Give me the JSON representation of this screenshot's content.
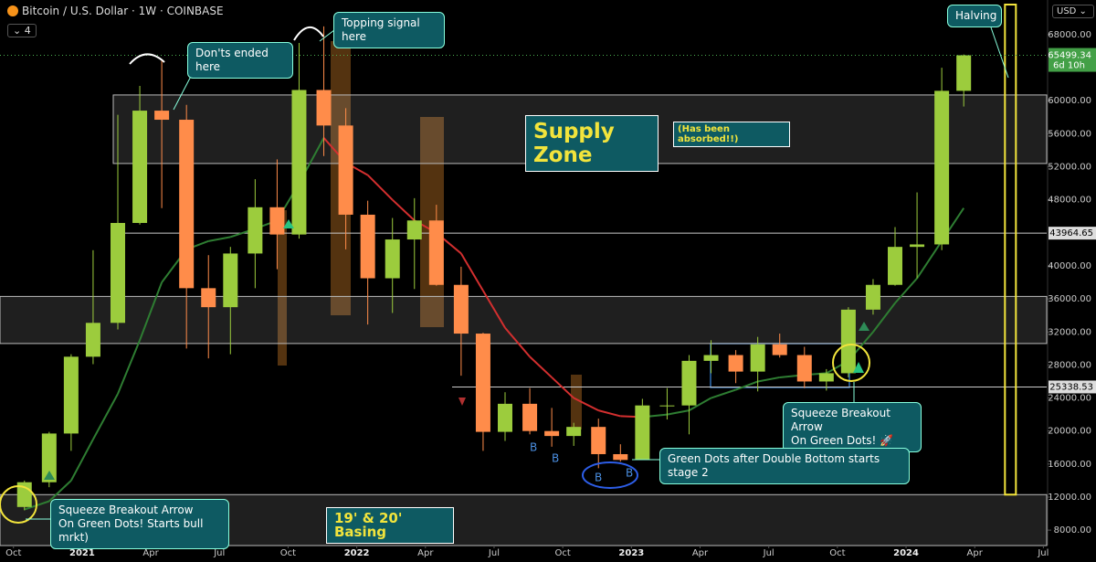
{
  "header": {
    "symbol": "Bitcoin / U.S. Dollar · 1W · COINBASE",
    "indicators": 4,
    "currency": "USD"
  },
  "chart_data": {
    "type": "candlestick",
    "x": [
      2020.79,
      2020.88,
      2020.96,
      2021.04,
      2021.13,
      2021.21,
      2021.29,
      2021.38,
      2021.46,
      2021.54,
      2021.63,
      2021.71,
      2021.79,
      2021.88,
      2021.96,
      2022.04,
      2022.13,
      2022.21,
      2022.29,
      2022.38,
      2022.46,
      2022.54,
      2022.63,
      2022.71,
      2022.79,
      2022.88,
      2022.96,
      2023.04,
      2023.13,
      2023.21,
      2023.29,
      2023.38,
      2023.46,
      2023.54,
      2023.63,
      2023.71,
      2023.79,
      2023.88,
      2023.96,
      2024.04,
      2024.13,
      2024.21
    ],
    "open": [
      10800,
      13800,
      19700,
      29000,
      33100,
      45200,
      58800,
      57700,
      37300,
      35000,
      41500,
      47100,
      43800,
      61300,
      57000,
      46200,
      38500,
      43200,
      45500,
      37700,
      31800,
      19900,
      23300,
      20000,
      19400,
      20500,
      17200,
      16500,
      23100,
      23100,
      28500,
      29200,
      27200,
      30500,
      29200,
      26000,
      27000,
      34700,
      37700,
      42300,
      42600,
      61200
    ],
    "high": [
      14000,
      19900,
      29300,
      41900,
      58300,
      61800,
      64900,
      59500,
      41300,
      42300,
      50500,
      52900,
      67000,
      69000,
      59100,
      47900,
      45800,
      48200,
      47400,
      39900,
      31900,
      24700,
      25200,
      22800,
      21000,
      21500,
      18400,
      23900,
      25200,
      29200,
      31000,
      29800,
      31400,
      31800,
      30200,
      27500,
      35000,
      38400,
      44700,
      48900,
      64000,
      65600
    ],
    "low": [
      10400,
      13200,
      17600,
      28100,
      32300,
      45000,
      47000,
      30000,
      28800,
      29300,
      37300,
      39600,
      43300,
      53300,
      42000,
      32900,
      34300,
      37200,
      37600,
      26700,
      17600,
      18800,
      19600,
      18100,
      18200,
      15500,
      16300,
      16500,
      21400,
      19600,
      27000,
      25800,
      24800,
      28900,
      25200,
      24900,
      26500,
      34100,
      37600,
      38500,
      41900,
      59300
    ],
    "close": [
      13800,
      19700,
      29000,
      33100,
      45200,
      58800,
      57700,
      37300,
      35000,
      41500,
      47100,
      43800,
      61300,
      57000,
      46200,
      38500,
      43200,
      45500,
      37700,
      31800,
      19900,
      23300,
      20000,
      19400,
      20500,
      17200,
      16500,
      23100,
      23100,
      28500,
      29200,
      27200,
      30500,
      29200,
      26000,
      27000,
      34700,
      37700,
      42300,
      42600,
      61200,
      65500
    ],
    "up_color": "#9ccc3d",
    "down_color": "#ff8c4a",
    "ma": {
      "values": [
        10500,
        11500,
        14000,
        19000,
        24500,
        31000,
        38000,
        42000,
        43000,
        43500,
        44500,
        45500,
        50000,
        55500,
        52500,
        51000,
        48000,
        45500,
        44000,
        41500,
        37000,
        32500,
        29000,
        26500,
        24000,
        22500,
        21800,
        21700,
        22000,
        22500,
        24000,
        25000,
        26000,
        26500,
        26800,
        27000,
        28500,
        32000,
        35500,
        38500,
        43000,
        47000
      ],
      "rising_color": "#2e7d32",
      "falling_color": "#d32f2f"
    },
    "levels": [
      60700,
      52400,
      36300,
      30600,
      12300
    ],
    "marked_levels": [
      43964.65,
      25338.53
    ],
    "last_price": 65499.34,
    "countdown": "6d 10h",
    "halving_x": 2024.38,
    "xlim": [
      2020.701,
      2024.512
    ],
    "ylim": [
      5800,
      72200
    ],
    "xticks": [
      {
        "value": 2020.75,
        "label": "Oct"
      },
      2021,
      {
        "value": 2021.25,
        "label": "Apr"
      },
      {
        "value": 2021.5,
        "label": "Jul"
      },
      {
        "value": 2021.75,
        "label": "Oct"
      },
      2022,
      {
        "value": 2022.25,
        "label": "Apr"
      },
      {
        "value": 2022.5,
        "label": "Jul"
      },
      {
        "value": 2022.75,
        "label": "Oct"
      },
      2023,
      {
        "value": 2023.25,
        "label": "Apr"
      },
      {
        "value": 2023.5,
        "label": "Jul"
      },
      {
        "value": 2023.75,
        "label": "Oct"
      },
      2024,
      {
        "value": 2024.25,
        "label": "Apr"
      },
      {
        "value": 2024.5,
        "label": "Jul"
      }
    ],
    "yticks": [
      {
        "value": 8000,
        "label": "8000.00"
      },
      {
        "value": 12000,
        "label": "12000.00"
      },
      {
        "value": 16000,
        "label": "16000.00"
      },
      {
        "value": 20000,
        "label": "20000.00"
      },
      {
        "value": 24000,
        "label": "24000.00"
      },
      {
        "value": 28000,
        "label": "28000.00"
      },
      {
        "value": 32000,
        "label": "32000.00"
      },
      {
        "value": 36000,
        "label": "36000.00"
      },
      {
        "value": 40000,
        "label": "40000.00"
      },
      {
        "value": 48000,
        "label": "48000.00"
      },
      {
        "value": 52000,
        "label": "52000.00"
      },
      {
        "value": 56000,
        "label": "56000.00"
      },
      {
        "value": 60000,
        "label": "60000.00"
      },
      {
        "value": 68000,
        "label": "68000.00"
      }
    ],
    "grid": false,
    "annotations": {
      "dont_ended": "Don'ts ended here",
      "topping": "Topping signal here",
      "halving": "Halving",
      "supply_zone": "Supply Zone",
      "absorbed": "(Has been absorbed!!)",
      "squeeze_right": [
        "Squeeze Breakout Arrow",
        "On Green Dots! 🚀"
      ],
      "green_dots": "Green Dots after Double Bottom starts stage 2",
      "squeeze_left": [
        "Squeeze Breakout Arrow",
        "On Green Dots! Starts bull mrkt)"
      ],
      "basing": "19' & 20' Basing",
      "bottoms": [
        "B",
        "B",
        "B",
        "B"
      ]
    }
  }
}
